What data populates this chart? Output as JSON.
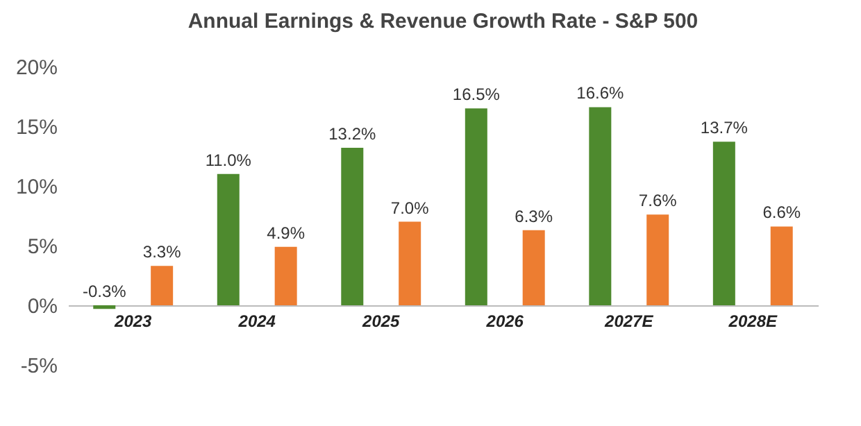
{
  "chart_data": {
    "type": "bar",
    "title": "Annual Earnings & Revenue Growth Rate - S&P 500",
    "categories": [
      "2023",
      "2024",
      "2025",
      "2026",
      "2027E",
      "2028E"
    ],
    "series": [
      {
        "color": "#4e8a2e",
        "values": [
          -0.3,
          11.0,
          13.2,
          16.5,
          16.6,
          13.7
        ],
        "value_labels": [
          "-0.3%",
          "11.0%",
          "13.2%",
          "16.5%",
          "16.6%",
          "13.7%"
        ]
      },
      {
        "color": "#ed7d31",
        "values": [
          3.3,
          4.9,
          7.0,
          6.3,
          7.6,
          6.6
        ],
        "value_labels": [
          "3.3%",
          "4.9%",
          "7.0%",
          "6.3%",
          "7.6%",
          "6.6%"
        ]
      }
    ],
    "ylim": [
      -5,
      20
    ],
    "yticks": [
      {
        "value": -5,
        "label": "-5%"
      },
      {
        "value": 0,
        "label": "0%"
      },
      {
        "value": 5,
        "label": "5%"
      },
      {
        "value": 10,
        "label": "10%"
      },
      {
        "value": 15,
        "label": "15%"
      },
      {
        "value": 20,
        "label": "20%"
      }
    ],
    "grid": false,
    "legend": false
  }
}
